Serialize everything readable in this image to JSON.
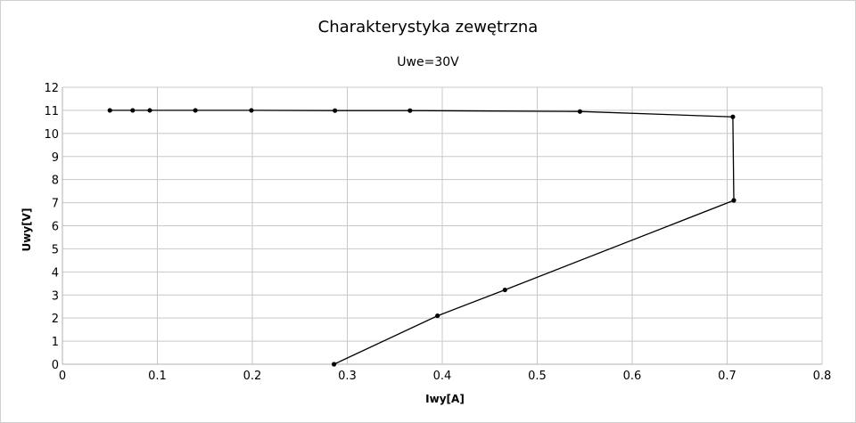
{
  "chart_data": {
    "type": "line",
    "title": "Charakterystyka zewętrzna",
    "subtitle": "Uwe=30V",
    "xlabel": "Iwy[A]",
    "ylabel": "Uwy[V]",
    "xlim": [
      0,
      0.8
    ],
    "ylim": [
      0,
      12
    ],
    "x_ticks": [
      "0",
      "0.1",
      "0.2",
      "0.3",
      "0.4",
      "0.5",
      "0.6",
      "0.7",
      "0.8"
    ],
    "y_ticks": [
      "0",
      "1",
      "2",
      "3",
      "4",
      "5",
      "6",
      "7",
      "8",
      "9",
      "10",
      "11",
      "12"
    ],
    "grid": true,
    "legend": "none",
    "series": [
      {
        "color": "#000000",
        "points": [
          [
            0.05,
            11.0
          ],
          [
            0.074,
            11.0
          ],
          [
            0.092,
            11.0
          ],
          [
            0.14,
            11.0
          ],
          [
            0.199,
            11.0
          ],
          [
            0.287,
            10.99
          ],
          [
            0.366,
            10.99
          ],
          [
            0.545,
            10.95
          ],
          [
            0.706,
            10.72
          ],
          [
            0.707,
            7.1
          ],
          [
            0.466,
            3.22
          ],
          [
            0.395,
            2.1
          ],
          [
            0.286,
            0.0
          ]
        ]
      }
    ]
  }
}
